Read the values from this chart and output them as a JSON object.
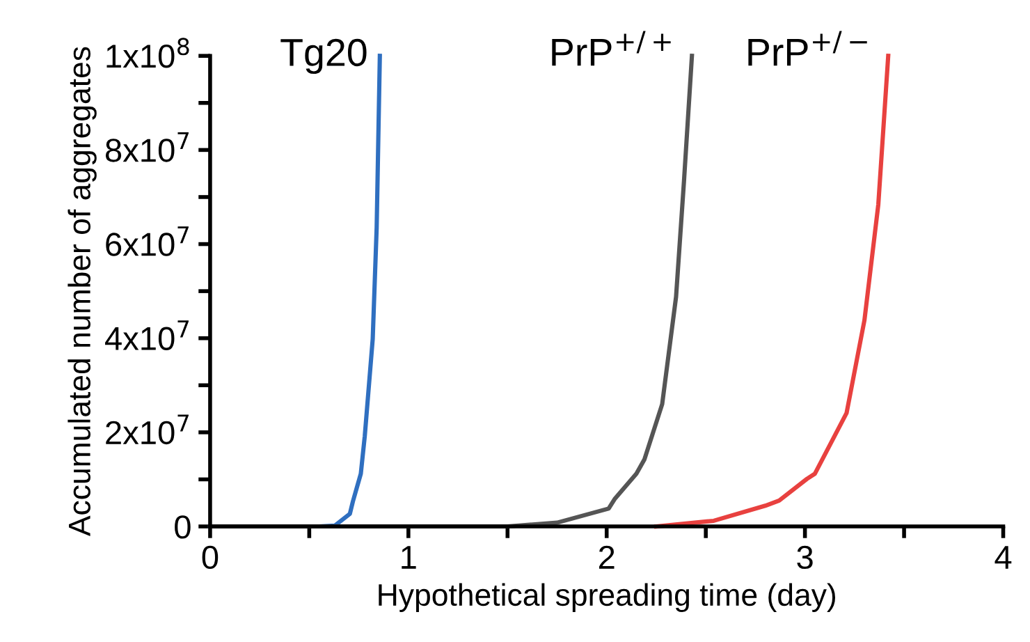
{
  "chart_data": {
    "type": "line",
    "xlabel": "Hypothetical spreading time (day)",
    "ylabel": "Accumulated number of aggregates",
    "xlim": [
      0,
      4
    ],
    "ylim": [
      0,
      100000000
    ],
    "xticks": [
      0,
      {
        "value": 0.5,
        "label": null
      },
      1,
      {
        "value": 1.5,
        "label": null
      },
      2,
      {
        "value": 2.5,
        "label": null
      },
      3,
      {
        "value": 3.5,
        "label": null
      },
      4
    ],
    "yticks": [
      0,
      {
        "value": 10000000,
        "label": null
      },
      {
        "value": 20000000,
        "label": "2x10$^{7}$"
      },
      {
        "value": 30000000,
        "label": null
      },
      {
        "value": 40000000,
        "label": "4x10$^{7}$"
      },
      {
        "value": 50000000,
        "label": null
      },
      {
        "value": 60000000,
        "label": "6x10$^{7}$"
      },
      {
        "value": 70000000,
        "label": null
      },
      {
        "value": 80000000,
        "label": "8x10$^{7}$"
      },
      {
        "value": 90000000,
        "label": null
      },
      {
        "value": 100000000,
        "label": "1x10$^{8}$"
      }
    ],
    "grid": false,
    "legend": false,
    "marker": "none",
    "line_style": "solid",
    "series": [
      {
        "name": "Tg20",
        "color": "#2f6fc0",
        "x": [
          0,
          0.55,
          0.63,
          0.705,
          0.72,
          0.76,
          0.78,
          0.82,
          0.84,
          0.856
        ],
        "values": [
          0,
          0,
          200000,
          2700000,
          5300000,
          11200000,
          19200000,
          39800000,
          63500000,
          100000000
        ]
      },
      {
        "name": "PrP$^{+/+}$",
        "color": "#555555",
        "x": [
          0,
          1.5,
          1.75,
          2.01,
          2.04,
          2.15,
          2.19,
          2.28,
          2.35,
          2.39,
          2.43
        ],
        "values": [
          0,
          0,
          800000,
          3800000,
          5800000,
          11200000,
          14200000,
          26000000,
          48800000,
          73400000,
          100000000
        ]
      },
      {
        "name": "PrP$^{+/−}$",
        "color": "#e8413f",
        "x": [
          2.25,
          2.54,
          2.8,
          2.87,
          3.01,
          3.05,
          3.21,
          3.3,
          3.37,
          3.42
        ],
        "values": [
          0,
          1200000,
          4400000,
          5500000,
          10100000,
          11200000,
          24100000,
          43800000,
          68400000,
          100000000
        ]
      }
    ]
  }
}
